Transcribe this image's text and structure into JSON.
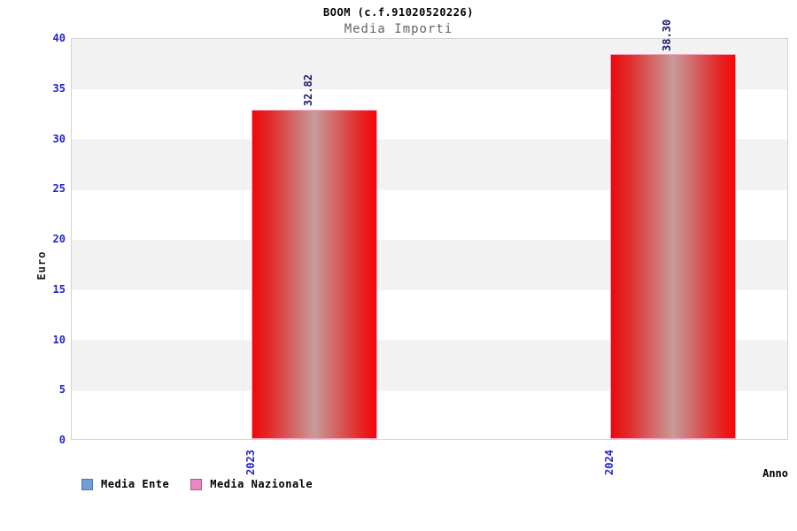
{
  "chart_data": {
    "type": "bar",
    "title": "BOOM (c.f.91020520226)",
    "subtitle": "Media Importi",
    "categories": [
      "2023",
      "2024"
    ],
    "values": [
      32.82,
      38.3
    ],
    "value_labels": [
      "32.82",
      "38.30"
    ],
    "xlabel": "Anno",
    "ylabel": "Euro",
    "ylim": [
      0,
      40
    ],
    "yticks": [
      0,
      5,
      10,
      15,
      20,
      25,
      30,
      35,
      40
    ],
    "grid": "horizontal-bands",
    "legend_position": "bottom-left",
    "legend": [
      {
        "label": "Media Ente",
        "fill": "#6f9fd4",
        "border": "#4576ad"
      },
      {
        "label": "Media Nazionale",
        "fill": "#ee87c1",
        "border": "#a05f80"
      }
    ],
    "colors": {
      "bar_edge_red": "#ed0909",
      "bar_center": "#c79b9b",
      "bar_border": "#f3a6bf",
      "tick_blue": "#2323cc",
      "value_label_navy": "#1b1b6e",
      "band_gray": "#f2f2f2",
      "subtitle_gray": "#646464"
    }
  }
}
